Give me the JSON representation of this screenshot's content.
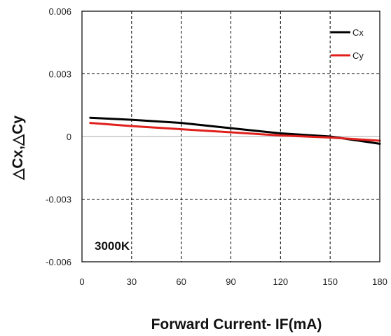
{
  "chart_data": {
    "type": "line",
    "xlabel": "Forward Current- IF(mA)",
    "ylabel": "△Cx,△Cy",
    "xlim": [
      0,
      180
    ],
    "ylim": [
      -0.006,
      0.006
    ],
    "x_ticks": [
      0,
      30,
      60,
      90,
      120,
      150,
      180
    ],
    "x_tick_labels": [
      "0",
      "30",
      "60",
      "90",
      "120",
      "150",
      "180"
    ],
    "y_ticks": [
      0.006,
      0.003,
      0,
      -0.003,
      -0.006
    ],
    "y_tick_labels": [
      "0.006",
      "0.003",
      "0",
      "-0.003",
      "-0.006"
    ],
    "grid": "dashed",
    "legend_position": "top-right",
    "annotation": "3000K",
    "series": [
      {
        "name": "Cx",
        "color": "#000000",
        "x": [
          5,
          30,
          60,
          90,
          120,
          150,
          180
        ],
        "y": [
          0.0009,
          0.0008,
          0.00065,
          0.0004,
          0.00015,
          0.0,
          -0.00035
        ]
      },
      {
        "name": "Cy",
        "color": "#e0201c",
        "x": [
          5,
          30,
          60,
          90,
          120,
          150,
          180
        ],
        "y": [
          0.00065,
          0.0005,
          0.00035,
          0.0002,
          5e-05,
          -5e-05,
          -0.0002
        ]
      }
    ]
  }
}
